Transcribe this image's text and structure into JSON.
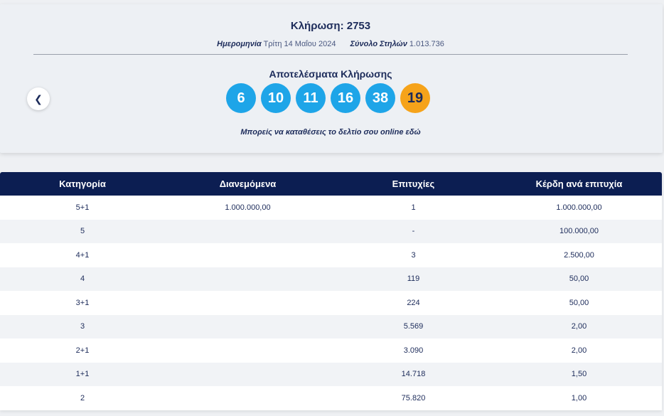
{
  "draw": {
    "title": "Κλήρωση: 2753",
    "date_label": "Ημερομηνία",
    "date_value": "Τρίτη 14 Μαΐου 2024",
    "columns_label": "Σύνολο Στηλών",
    "columns_value": "1.013.736",
    "results_title": "Αποτελέσματα Κλήρωσης",
    "numbers": [
      "6",
      "10",
      "11",
      "16",
      "38"
    ],
    "joker": "19",
    "online_text": "Μπορείς να καταθέσεις το δελτίο σου online",
    "online_link": "εδώ",
    "prev_icon": "chevron-left-icon"
  },
  "colors": {
    "ball": "#1ea5e8",
    "joker": "#f6a31a",
    "header": "#0c1e52"
  },
  "table": {
    "headers": [
      "Κατηγορία",
      "Διανεμόμενα",
      "Επιτυχίες",
      "Κέρδη ανά επιτυχία"
    ],
    "rows": [
      [
        "5+1",
        "1.000.000,00",
        "1",
        "1.000.000,00"
      ],
      [
        "5",
        "",
        "-",
        "100.000,00"
      ],
      [
        "4+1",
        "",
        "3",
        "2.500,00"
      ],
      [
        "4",
        "",
        "119",
        "50,00"
      ],
      [
        "3+1",
        "",
        "224",
        "50,00"
      ],
      [
        "3",
        "",
        "5.569",
        "2,00"
      ],
      [
        "2+1",
        "",
        "3.090",
        "2,00"
      ],
      [
        "1+1",
        "",
        "14.718",
        "1,50"
      ],
      [
        "2",
        "",
        "75.820",
        "1,00"
      ]
    ]
  }
}
